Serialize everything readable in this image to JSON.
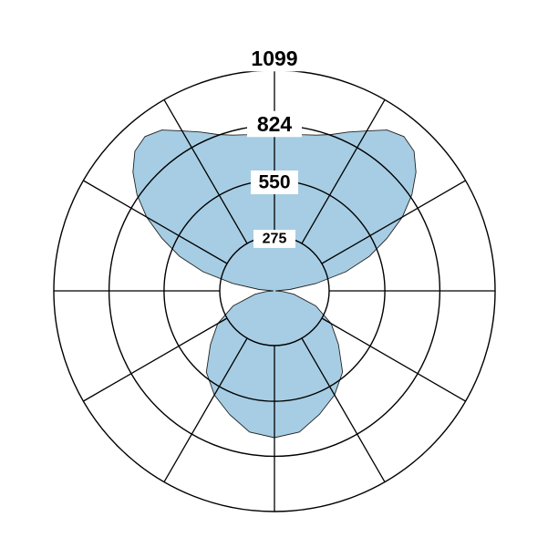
{
  "chart_data": {
    "type": "polar-area",
    "title": "",
    "angle_unit": "deg",
    "angle_zero": "up",
    "radial_max": 1099,
    "radial_ticks": [
      "275",
      "550",
      "824",
      "1099"
    ],
    "fill_color": "#a6cde3",
    "grid_color": "#000000",
    "spoke_angles": [
      0,
      30,
      60,
      90,
      120,
      150,
      180,
      210,
      240,
      270,
      300,
      330
    ],
    "series": [
      {
        "angles": [
          -180,
          -170,
          -160,
          -150,
          -140,
          -130,
          -120,
          -110,
          -100,
          -95,
          -90,
          -85,
          -80,
          -75,
          -70,
          -65,
          -60,
          -55,
          -50,
          -45,
          -40,
          -35,
          -30,
          -25,
          -20,
          -15,
          -10,
          -5,
          0,
          5,
          10,
          15,
          20,
          25,
          30,
          35,
          40,
          45,
          50,
          55,
          60,
          65,
          70,
          75,
          80,
          85,
          90,
          95,
          100,
          110,
          120,
          130,
          140,
          150,
          160,
          170,
          180
        ],
        "values": [
          731,
          714,
          655,
          599,
          528,
          416,
          326,
          219,
          98,
          43,
          5,
          77,
          209,
          368,
          503,
          618,
          735,
          836,
          920,
          983,
          1003,
          978,
          920,
          873,
          829,
          803,
          790,
          788,
          787,
          788,
          790,
          803,
          829,
          873,
          920,
          978,
          1003,
          983,
          920,
          836,
          735,
          618,
          503,
          368,
          209,
          77,
          5,
          43,
          98,
          219,
          326,
          416,
          528,
          599,
          655,
          714,
          731
        ]
      }
    ]
  }
}
